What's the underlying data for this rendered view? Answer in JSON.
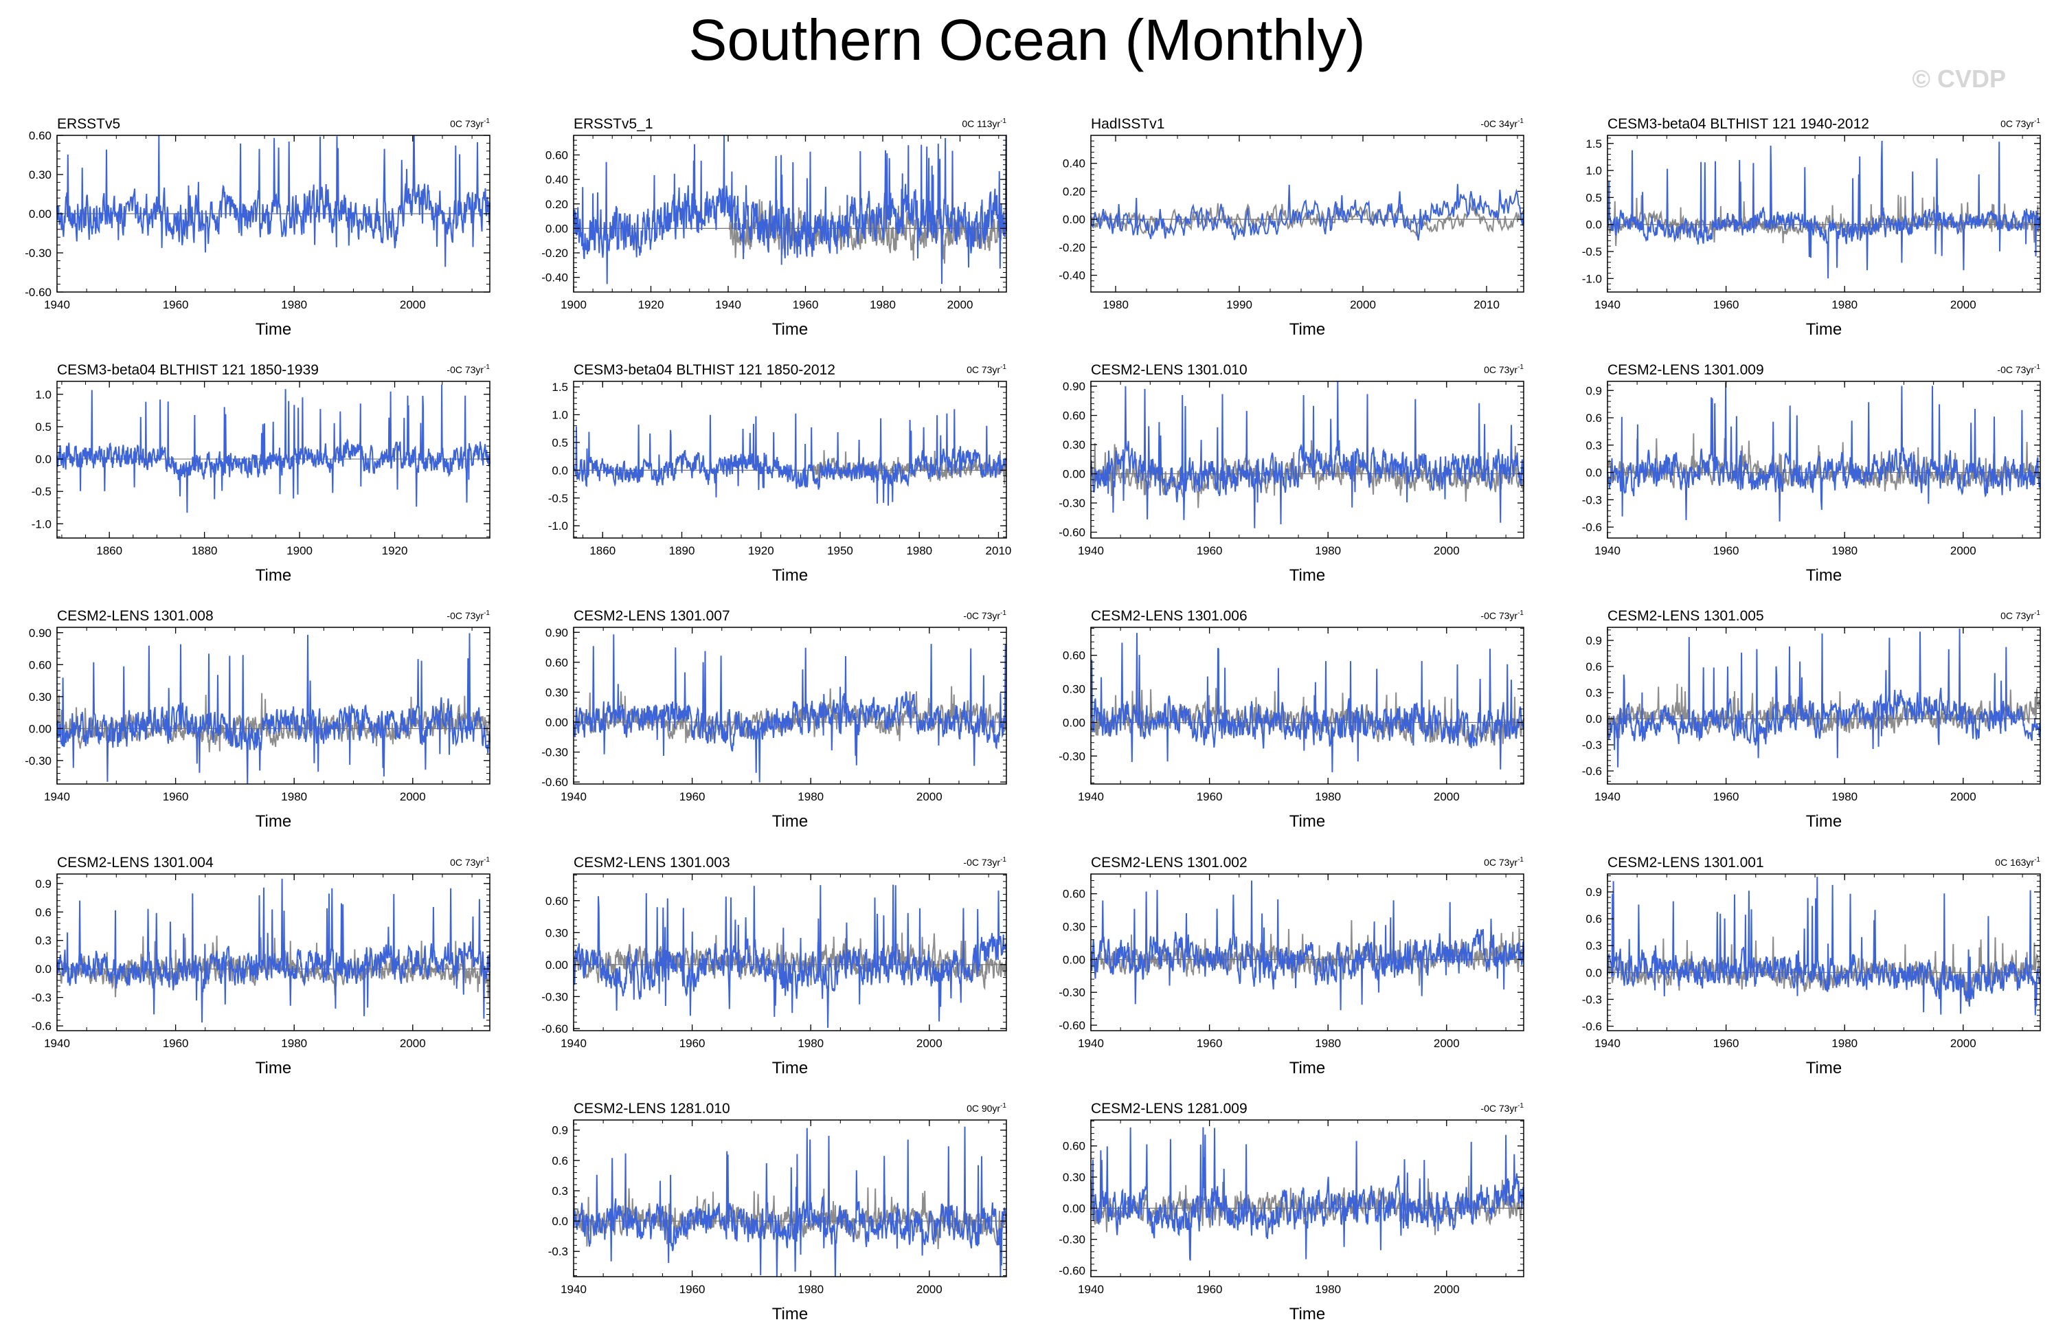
{
  "title": "Southern Ocean (Monthly)",
  "watermark": "© CVDP",
  "colors": {
    "model": "#3d63d8",
    "obs": "#8c8c8c",
    "zero": "#777777",
    "frame": "#000000"
  },
  "chart_data": [
    {
      "type": "line",
      "title": "ERSSTv5",
      "trend": "0C 73yr",
      "xlabel": "Time",
      "xlim": [
        1940,
        2013
      ],
      "xticks": [
        1940,
        1960,
        1980,
        2000
      ],
      "ylim": [
        -0.6,
        0.6
      ],
      "yticks": [
        "-0.60",
        "-0.30",
        "0.00",
        "0.30",
        "0.60"
      ],
      "obs_overlay": false,
      "seed": 1,
      "amp": 0.13,
      "spike": 0.58
    },
    {
      "type": "line",
      "title": "ERSSTv5_1",
      "trend": "0C 113yr",
      "xlabel": "Time",
      "xlim": [
        1900,
        2012
      ],
      "xticks": [
        1900,
        1920,
        1940,
        1960,
        1980,
        2000
      ],
      "ylim": [
        -0.52,
        0.76
      ],
      "yticks": [
        "-0.40",
        "-0.20",
        "0.00",
        "0.20",
        "0.40",
        "0.60"
      ],
      "obs_overlay": true,
      "seed": 2,
      "amp": 0.15,
      "spike": 0.68
    },
    {
      "type": "line",
      "title": "HadISSTv1",
      "trend": "-0C 34yr",
      "xlabel": "Time",
      "xlim": [
        1978,
        2013
      ],
      "xticks": [
        1980,
        1990,
        2000,
        2010
      ],
      "ylim": [
        -0.52,
        0.6
      ],
      "yticks": [
        "-0.40",
        "-0.20",
        "0.00",
        "0.20",
        "0.40"
      ],
      "obs_overlay": true,
      "seed": 3,
      "amp": 0.08,
      "spike": 0.2
    },
    {
      "type": "line",
      "title": "CESM3-beta04 BLTHIST 121 1940-2012",
      "trend": "0C 73yr",
      "xlabel": "Time",
      "xlim": [
        1940,
        2013
      ],
      "xticks": [
        1940,
        1960,
        1980,
        2000
      ],
      "ylim": [
        -1.25,
        1.65
      ],
      "yticks": [
        "-1.0",
        "-0.5",
        "0.0",
        "0.5",
        "1.0",
        "1.5"
      ],
      "obs_overlay": true,
      "seed": 4,
      "amp": 0.16,
      "spike": 1.55
    },
    {
      "type": "line",
      "title": "CESM3-beta04 BLTHIST 121 1850-1939",
      "trend": "-0C 73yr",
      "xlabel": "Time",
      "xlim": [
        1849,
        1940
      ],
      "xticks": [
        1860,
        1880,
        1900,
        1920
      ],
      "ylim": [
        -1.22,
        1.2
      ],
      "yticks": [
        "-1.0",
        "-0.5",
        "0.0",
        "0.5",
        "1.0"
      ],
      "obs_overlay": false,
      "seed": 5,
      "amp": 0.15,
      "spike": 1.15
    },
    {
      "type": "line",
      "title": "CESM3-beta04 BLTHIST 121 1850-2012",
      "trend": "0C 73yr",
      "xlabel": "Time",
      "xlim": [
        1849,
        2013
      ],
      "xticks": [
        1860,
        1890,
        1920,
        1950,
        1980,
        2010
      ],
      "ylim": [
        -1.22,
        1.6
      ],
      "yticks": [
        "-1.0",
        "-0.5",
        "0.0",
        "0.5",
        "1.0",
        "1.5"
      ],
      "obs_overlay": true,
      "seed": 6,
      "amp": 0.17,
      "spike": 1.1
    },
    {
      "type": "line",
      "title": "CESM2-LENS 1301.010",
      "trend": "0C 73yr",
      "xlabel": "Time",
      "xlim": [
        1940,
        2013
      ],
      "xticks": [
        1940,
        1960,
        1980,
        2000
      ],
      "ylim": [
        -0.66,
        0.95
      ],
      "yticks": [
        "-0.60",
        "-0.30",
        "0.00",
        "0.30",
        "0.60",
        "0.90"
      ],
      "obs_overlay": true,
      "seed": 7,
      "amp": 0.14,
      "spike": 0.9
    },
    {
      "type": "line",
      "title": "CESM2-LENS 1301.009",
      "trend": "-0C 73yr",
      "xlabel": "Time",
      "xlim": [
        1940,
        2013
      ],
      "xticks": [
        1940,
        1960,
        1980,
        2000
      ],
      "ylim": [
        -0.72,
        1.0
      ],
      "yticks": [
        "-0.6",
        "-0.3",
        "0.0",
        "0.3",
        "0.6",
        "0.9"
      ],
      "obs_overlay": true,
      "seed": 8,
      "amp": 0.14,
      "spike": 0.95
    },
    {
      "type": "line",
      "title": "CESM2-LENS 1301.008",
      "trend": "-0C 73yr",
      "xlabel": "Time",
      "xlim": [
        1940,
        2013
      ],
      "xticks": [
        1940,
        1960,
        1980,
        2000
      ],
      "ylim": [
        -0.52,
        0.95
      ],
      "yticks": [
        "-0.30",
        "0.00",
        "0.30",
        "0.60",
        "0.90"
      ],
      "obs_overlay": true,
      "seed": 9,
      "amp": 0.13,
      "spike": 0.88
    },
    {
      "type": "line",
      "title": "CESM2-LENS 1301.007",
      "trend": "-0C 73yr",
      "xlabel": "Time",
      "xlim": [
        1940,
        2013
      ],
      "xticks": [
        1940,
        1960,
        1980,
        2000
      ],
      "ylim": [
        -0.62,
        0.95
      ],
      "yticks": [
        "-0.60",
        "-0.30",
        "0.00",
        "0.30",
        "0.60",
        "0.90"
      ],
      "obs_overlay": true,
      "seed": 10,
      "amp": 0.13,
      "spike": 0.88
    },
    {
      "type": "line",
      "title": "CESM2-LENS 1301.006",
      "trend": "-0C 73yr",
      "xlabel": "Time",
      "xlim": [
        1940,
        2013
      ],
      "xticks": [
        1940,
        1960,
        1980,
        2000
      ],
      "ylim": [
        -0.55,
        0.85
      ],
      "yticks": [
        "-0.30",
        "0.00",
        "0.30",
        "0.60"
      ],
      "obs_overlay": true,
      "seed": 11,
      "amp": 0.13,
      "spike": 0.8
    },
    {
      "type": "line",
      "title": "CESM2-LENS 1301.005",
      "trend": "0C 73yr",
      "xlabel": "Time",
      "xlim": [
        1940,
        2013
      ],
      "xticks": [
        1940,
        1960,
        1980,
        2000
      ],
      "ylim": [
        -0.75,
        1.05
      ],
      "yticks": [
        "-0.6",
        "-0.3",
        "0.0",
        "0.3",
        "0.6",
        "0.9"
      ],
      "obs_overlay": true,
      "seed": 12,
      "amp": 0.14,
      "spike": 1.0
    },
    {
      "type": "line",
      "title": "CESM2-LENS 1301.004",
      "trend": "0C 73yr",
      "xlabel": "Time",
      "xlim": [
        1940,
        2013
      ],
      "xticks": [
        1940,
        1960,
        1980,
        2000
      ],
      "ylim": [
        -0.65,
        1.0
      ],
      "yticks": [
        "-0.6",
        "-0.3",
        "0.0",
        "0.3",
        "0.6",
        "0.9"
      ],
      "obs_overlay": true,
      "seed": 13,
      "amp": 0.14,
      "spike": 0.95
    },
    {
      "type": "line",
      "title": "CESM2-LENS 1301.003",
      "trend": "-0C 73yr",
      "xlabel": "Time",
      "xlim": [
        1940,
        2013
      ],
      "xticks": [
        1940,
        1960,
        1980,
        2000
      ],
      "ylim": [
        -0.62,
        0.85
      ],
      "yticks": [
        "-0.60",
        "-0.30",
        "0.00",
        "0.30",
        "0.60"
      ],
      "obs_overlay": true,
      "seed": 14,
      "amp": 0.14,
      "spike": 0.75
    },
    {
      "type": "line",
      "title": "CESM2-LENS 1301.002",
      "trend": "0C 73yr",
      "xlabel": "Time",
      "xlim": [
        1940,
        2013
      ],
      "xticks": [
        1940,
        1960,
        1980,
        2000
      ],
      "ylim": [
        -0.65,
        0.78
      ],
      "yticks": [
        "-0.60",
        "-0.30",
        "0.00",
        "0.30",
        "0.60"
      ],
      "obs_overlay": true,
      "seed": 15,
      "amp": 0.13,
      "spike": 0.72
    },
    {
      "type": "line",
      "title": "CESM2-LENS 1301.001",
      "trend": "0C 163yr",
      "xlabel": "Time",
      "xlim": [
        1940,
        2013
      ],
      "xticks": [
        1940,
        1960,
        1980,
        2000
      ],
      "ylim": [
        -0.65,
        1.1
      ],
      "yticks": [
        "-0.6",
        "-0.3",
        "0.0",
        "0.3",
        "0.6",
        "0.9"
      ],
      "obs_overlay": true,
      "seed": 16,
      "amp": 0.14,
      "spike": 1.02
    },
    {
      "type": "line",
      "title": "CESM2-LENS 1281.010",
      "trend": "0C 90yr",
      "xlabel": "Time",
      "xlim": [
        1940,
        2013
      ],
      "xticks": [
        1940,
        1960,
        1980,
        2000
      ],
      "ylim": [
        -0.55,
        1.0
      ],
      "yticks": [
        "-0.3",
        "0.0",
        "0.3",
        "0.6",
        "0.9"
      ],
      "obs_overlay": true,
      "seed": 17,
      "amp": 0.14,
      "spike": 0.92
    },
    {
      "type": "line",
      "title": "CESM2-LENS 1281.009",
      "trend": "-0C 73yr",
      "xlabel": "Time",
      "xlim": [
        1940,
        2013
      ],
      "xticks": [
        1940,
        1960,
        1980,
        2000
      ],
      "ylim": [
        -0.66,
        0.85
      ],
      "yticks": [
        "-0.60",
        "-0.30",
        "0.00",
        "0.30",
        "0.60"
      ],
      "obs_overlay": true,
      "seed": 18,
      "amp": 0.14,
      "spike": 0.78
    }
  ]
}
